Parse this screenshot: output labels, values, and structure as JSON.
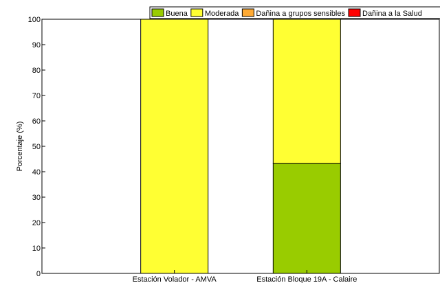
{
  "chart_data": {
    "type": "bar",
    "stacked": true,
    "categories": [
      "Estación Volador - AMVA",
      "Estación Bloque 19A - Calaire"
    ],
    "series": [
      {
        "name": "Buena",
        "color": "#99cc00",
        "values": [
          0,
          43.3
        ]
      },
      {
        "name": "Moderada",
        "color": "#ffff33",
        "values": [
          100,
          56.7
        ]
      },
      {
        "name": "Dañina a grupos sensibles",
        "color": "#ffaa33",
        "values": [
          0,
          0
        ]
      },
      {
        "name": "Dañina a la Salud",
        "color": "#ff0000",
        "values": [
          0,
          0
        ]
      }
    ],
    "ylabel": "Porcentaje (%)",
    "xlabel": "",
    "ylim": [
      0,
      100
    ],
    "yticks": [
      0,
      10,
      20,
      30,
      40,
      50,
      60,
      70,
      80,
      90,
      100
    ],
    "grid": false,
    "legend_position": "top"
  }
}
